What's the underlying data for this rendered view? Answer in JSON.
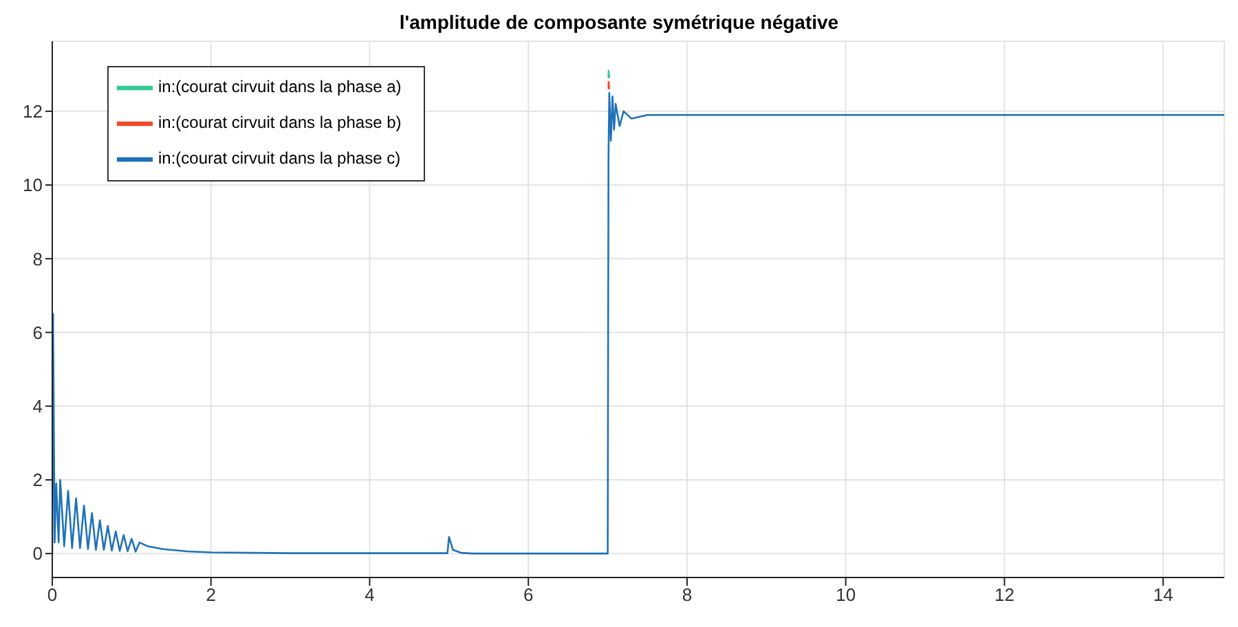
{
  "chart_data": {
    "type": "line",
    "title": "l'amplitude de composante symétrique négative",
    "x": [
      0,
      0.01,
      0.03,
      0.05,
      0.08,
      0.1,
      0.15,
      0.2,
      0.25,
      0.3,
      0.35,
      0.4,
      0.45,
      0.5,
      0.55,
      0.6,
      0.65,
      0.7,
      0.75,
      0.8,
      0.85,
      0.9,
      0.95,
      1.0,
      1.05,
      1.1,
      1.2,
      1.4,
      1.7,
      2,
      3,
      4.98,
      5.0,
      5.05,
      5.15,
      5.3,
      6.99,
      7.0,
      7.01,
      7.02,
      7.04,
      7.06,
      7.08,
      7.1,
      7.15,
      7.2,
      7.3,
      7.5,
      14.77
    ],
    "series": [
      {
        "name": "in:(courat cirvuit dans la phase a)",
        "color": "#2ecc8f",
        "x": [
          7.01,
          7.011,
          7.02
        ],
        "values": [
          12.9,
          13.1,
          12.9
        ]
      },
      {
        "name": "in:(courat cirvuit dans la phase b)",
        "color": "#f04a2a",
        "x": [
          7.01,
          7.011,
          7.02
        ],
        "values": [
          12.6,
          12.8,
          12.6
        ]
      },
      {
        "name": "in:(courat cirvuit dans la phase c)",
        "color": "#1f72b8",
        "values": [
          0,
          6.5,
          0.3,
          1.9,
          0.3,
          2.0,
          0.2,
          1.7,
          0.15,
          1.5,
          0.15,
          1.3,
          0.12,
          1.1,
          0.1,
          0.9,
          0.1,
          0.75,
          0.08,
          0.6,
          0.07,
          0.5,
          0.06,
          0.4,
          0.05,
          0.3,
          0.2,
          0.12,
          0.06,
          0.03,
          0.01,
          0.01,
          0.45,
          0.1,
          0.02,
          0,
          0,
          0,
          10.8,
          12.5,
          11.2,
          12.4,
          11.5,
          12.2,
          11.6,
          12.0,
          11.8,
          11.9,
          11.9
        ]
      }
    ],
    "xlim": [
      0,
      14.77
    ],
    "xticks": [
      0,
      2,
      4,
      6,
      8,
      10,
      12,
      14
    ],
    "ylim": [
      -0.65,
      13.9
    ],
    "yticks": [
      0,
      2,
      4,
      6,
      8,
      10,
      12
    ],
    "grid": true,
    "legend": "top left",
    "marker": "none",
    "line_style": "solid"
  }
}
